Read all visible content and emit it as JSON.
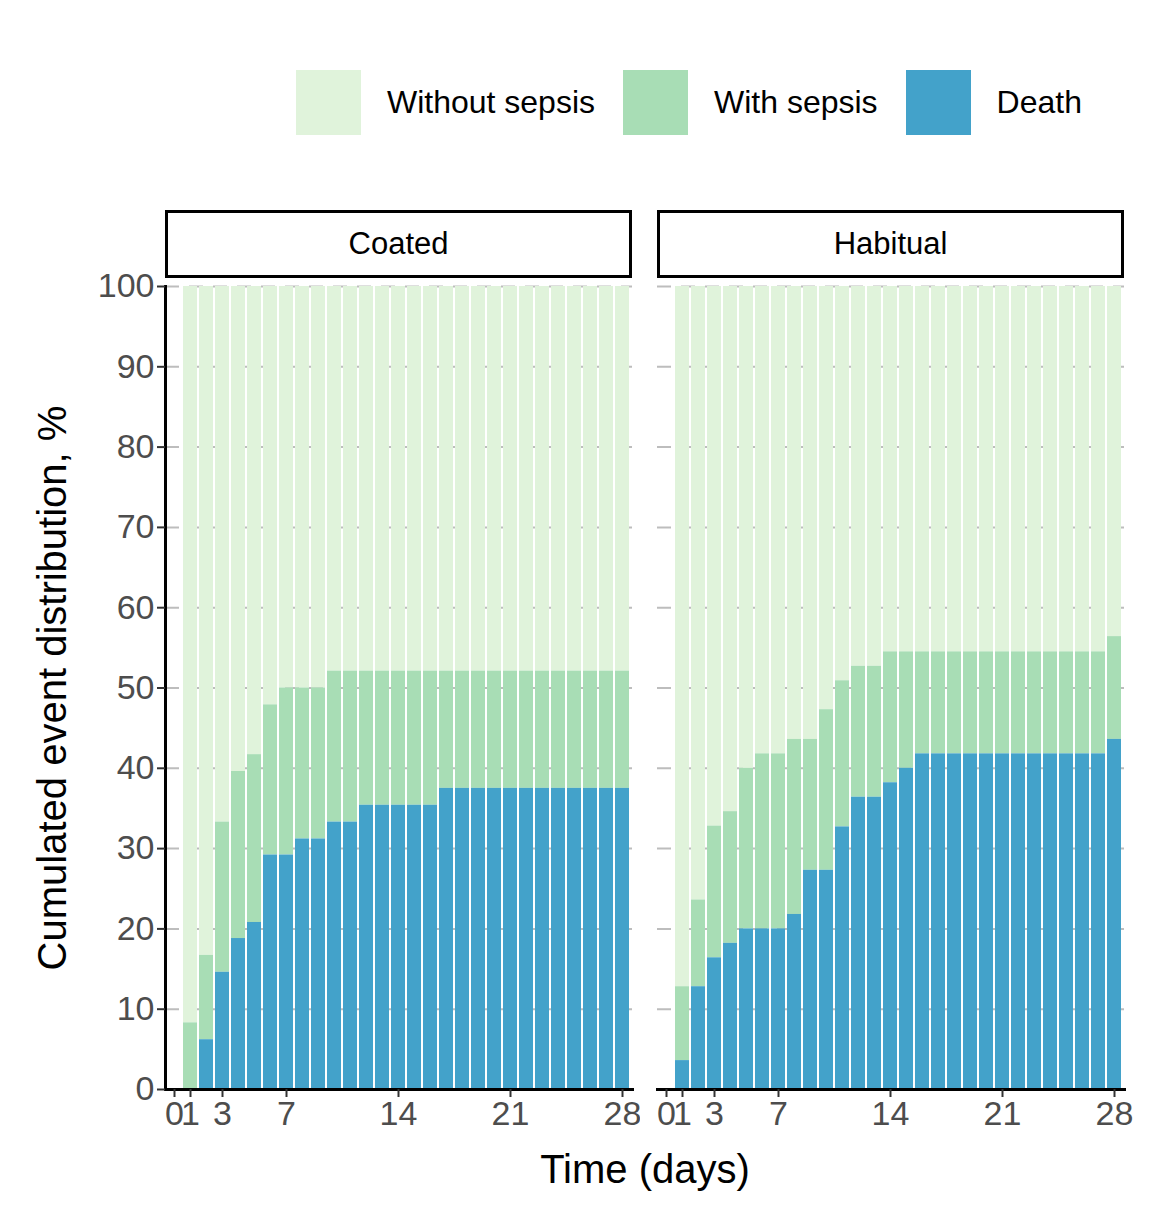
{
  "chart_data": {
    "type": "bar",
    "stacked": true,
    "grid": true,
    "legend": "top",
    "xlabel": "Time (days)",
    "ylabel": "Cumulated event distribution, %",
    "xlim": [
      0,
      28
    ],
    "xticks": [
      0,
      1,
      3,
      7,
      14,
      21,
      28
    ],
    "ylim": [
      0,
      100
    ],
    "yticks": [
      0,
      10,
      20,
      30,
      40,
      50,
      60,
      70,
      80,
      90,
      100
    ],
    "x": [
      1,
      2,
      3,
      4,
      5,
      6,
      7,
      8,
      9,
      10,
      11,
      12,
      13,
      14,
      15,
      16,
      17,
      18,
      19,
      20,
      21,
      22,
      23,
      24,
      25,
      26,
      27,
      28
    ],
    "panels": [
      {
        "title": "Coated",
        "series": [
          {
            "name": "Without sepsis",
            "color": "#e0f3db",
            "values": [
              91.7,
              83.3,
              66.7,
              60.4,
              58.3,
              52.1,
              50,
              50,
              50,
              47.9,
              47.9,
              47.9,
              47.9,
              47.9,
              47.9,
              47.9,
              47.9,
              47.9,
              47.9,
              47.9,
              47.9,
              47.9,
              47.9,
              47.9,
              47.9,
              47.9,
              47.9,
              47.9
            ]
          },
          {
            "name": "With sepsis",
            "color": "#a8ddb5",
            "values": [
              8.3,
              10.5,
              18.7,
              20.8,
              20.9,
              18.7,
              20.8,
              18.8,
              18.8,
              18.8,
              18.8,
              16.7,
              16.7,
              16.7,
              16.7,
              16.7,
              14.6,
              14.6,
              14.6,
              14.6,
              14.6,
              14.6,
              14.6,
              14.6,
              14.6,
              14.6,
              14.6,
              14.6
            ]
          },
          {
            "name": "Death",
            "color": "#43a2ca",
            "values": [
              0,
              6.2,
              14.6,
              18.8,
              20.8,
              29.2,
              29.2,
              31.2,
              31.2,
              33.3,
              33.3,
              35.4,
              35.4,
              35.4,
              35.4,
              35.4,
              37.5,
              37.5,
              37.5,
              37.5,
              37.5,
              37.5,
              37.5,
              37.5,
              37.5,
              37.5,
              37.5,
              37.5
            ]
          }
        ]
      },
      {
        "title": "Habitual",
        "series": [
          {
            "name": "Without sepsis",
            "color": "#e0f3db",
            "values": [
              87.2,
              76.4,
              67.2,
              65.4,
              60,
              58.2,
              58.2,
              56.4,
              56.4,
              52.7,
              49.1,
              47.3,
              47.3,
              45.5,
              45.5,
              45.5,
              45.5,
              45.5,
              45.5,
              45.5,
              45.5,
              45.5,
              45.5,
              45.5,
              45.5,
              45.5,
              45.5,
              43.6
            ]
          },
          {
            "name": "With sepsis",
            "color": "#a8ddb5",
            "values": [
              9.2,
              10.8,
              16.4,
              16.4,
              20,
              21.8,
              21.8,
              21.8,
              16.3,
              20,
              18.2,
              16.3,
              16.3,
              16.3,
              14.5,
              12.7,
              12.7,
              12.7,
              12.7,
              12.7,
              12.7,
              12.7,
              12.7,
              12.7,
              12.7,
              12.7,
              12.7,
              12.8
            ]
          },
          {
            "name": "Death",
            "color": "#43a2ca",
            "values": [
              3.6,
              12.8,
              16.4,
              18.2,
              20,
              20,
              20,
              21.8,
              27.3,
              27.3,
              32.7,
              36.4,
              36.4,
              38.2,
              40,
              41.8,
              41.8,
              41.8,
              41.8,
              41.8,
              41.8,
              41.8,
              41.8,
              41.8,
              41.8,
              41.8,
              41.8,
              43.6
            ]
          }
        ]
      }
    ]
  }
}
